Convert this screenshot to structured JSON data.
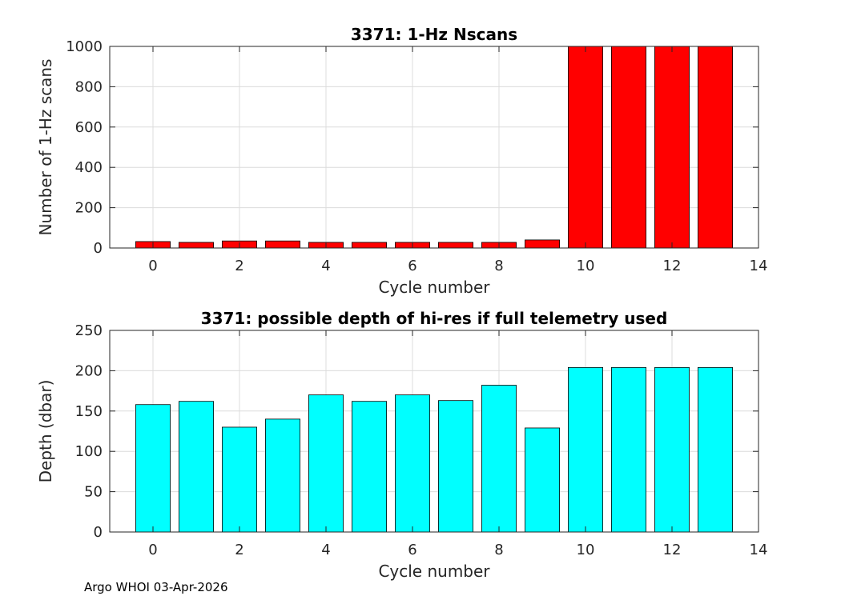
{
  "chart_data": [
    {
      "type": "bar",
      "title": "3371: 1-Hz Nscans",
      "xlabel": "Cycle number",
      "ylabel": "Number of 1-Hz scans",
      "x": [
        0,
        1,
        2,
        3,
        4,
        5,
        6,
        7,
        8,
        9,
        10,
        11,
        12,
        13
      ],
      "values": [
        32,
        28,
        35,
        35,
        28,
        28,
        28,
        28,
        28,
        40,
        1000,
        1000,
        1000,
        1000
      ],
      "xlim": [
        -1,
        14
      ],
      "ylim": [
        0,
        1000
      ],
      "xticks": [
        0,
        2,
        4,
        6,
        8,
        10,
        12,
        14
      ],
      "yticks": [
        0,
        200,
        400,
        600,
        800,
        1000
      ],
      "bar_color": "#ff0000",
      "grid": true
    },
    {
      "type": "bar",
      "title": "3371: possible depth of hi-res if full telemetry used",
      "xlabel": "Cycle number",
      "ylabel": "Depth (dbar)",
      "x": [
        0,
        1,
        2,
        3,
        4,
        5,
        6,
        7,
        8,
        9,
        10,
        11,
        12,
        13
      ],
      "values": [
        158,
        162,
        130,
        140,
        170,
        162,
        170,
        163,
        182,
        129,
        204,
        204,
        204,
        204
      ],
      "xlim": [
        -1,
        14
      ],
      "ylim": [
        0,
        250
      ],
      "xticks": [
        0,
        2,
        4,
        6,
        8,
        10,
        12,
        14
      ],
      "yticks": [
        0,
        50,
        100,
        150,
        200,
        250
      ],
      "bar_color": "#00ffff",
      "grid": true
    }
  ],
  "footer": "Argo WHOI 03-Apr-2026"
}
